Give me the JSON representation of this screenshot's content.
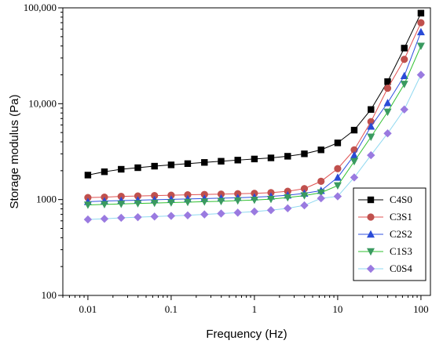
{
  "chart_data": {
    "type": "line",
    "xlabel": "Frequency (Hz)",
    "ylabel": "Storage modulus (Pa)",
    "x_scale": "log",
    "y_scale": "log",
    "xlim": [
      0.005,
      130
    ],
    "ylim": [
      100,
      100000
    ],
    "x_ticks": [
      {
        "value": 0.01,
        "label": "0.01"
      },
      {
        "value": 0.1,
        "label": "0.1"
      },
      {
        "value": 1,
        "label": "1"
      },
      {
        "value": 10,
        "label": "10"
      },
      {
        "value": 100,
        "label": "100"
      }
    ],
    "y_ticks": [
      {
        "value": 100,
        "label": "100"
      },
      {
        "value": 1000,
        "label": "1000"
      },
      {
        "value": 10000,
        "label": "10,000"
      },
      {
        "value": 100000,
        "label": "100,000"
      }
    ],
    "grid": false,
    "legend_position": "bottom-right",
    "x": [
      0.01,
      0.0158,
      0.0251,
      0.0398,
      0.0631,
      0.1,
      0.158,
      0.251,
      0.398,
      0.631,
      1,
      1.58,
      2.51,
      3.98,
      6.31,
      10,
      15.8,
      25.1,
      39.8,
      63.1,
      100
    ],
    "series": [
      {
        "name": "C4S0",
        "marker": "square",
        "color": "#000000",
        "line_color": "#000000",
        "values": [
          1800,
          1950,
          2070,
          2150,
          2230,
          2300,
          2370,
          2440,
          2510,
          2580,
          2650,
          2720,
          2830,
          3000,
          3300,
          3900,
          5300,
          8700,
          17000,
          38000,
          88000
        ]
      },
      {
        "name": "C3S1",
        "marker": "circle",
        "color": "#c0504d",
        "line_color": "#e05050",
        "values": [
          1050,
          1060,
          1080,
          1090,
          1100,
          1110,
          1120,
          1130,
          1140,
          1150,
          1160,
          1180,
          1220,
          1300,
          1550,
          2100,
          3300,
          6500,
          14500,
          29000,
          70000
        ]
      },
      {
        "name": "C2S2",
        "marker": "triangle-up",
        "color": "#2a4bd7",
        "line_color": "#3050e0",
        "values": [
          950,
          965,
          975,
          985,
          995,
          1005,
          1015,
          1025,
          1035,
          1045,
          1060,
          1080,
          1110,
          1160,
          1240,
          1700,
          2900,
          5800,
          10200,
          19500,
          56000
        ]
      },
      {
        "name": "C1S3",
        "marker": "triangle-down",
        "color": "#3a9a60",
        "line_color": "#30c030",
        "values": [
          880,
          890,
          900,
          910,
          920,
          930,
          940,
          950,
          960,
          975,
          990,
          1010,
          1050,
          1100,
          1180,
          1400,
          2500,
          4500,
          8200,
          16000,
          40000
        ]
      },
      {
        "name": "C0S4",
        "marker": "diamond",
        "color": "#9a7ae0",
        "line_color": "#8fd8f0",
        "values": [
          620,
          630,
          645,
          655,
          665,
          675,
          685,
          700,
          715,
          730,
          750,
          775,
          810,
          870,
          1030,
          1080,
          1700,
          2900,
          4900,
          8700,
          20000
        ]
      }
    ]
  }
}
